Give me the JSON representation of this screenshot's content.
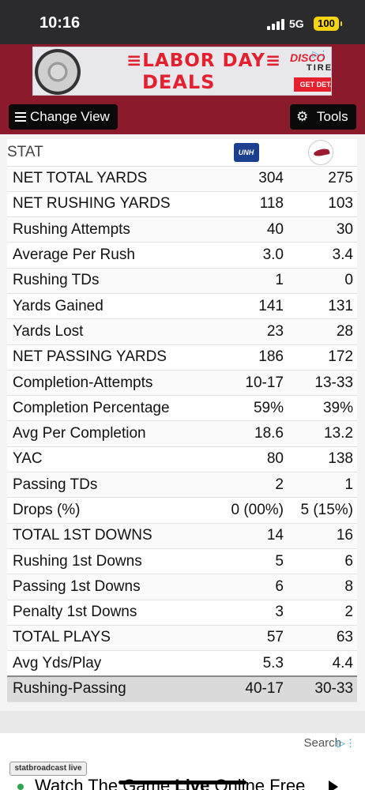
{
  "status_bar": {
    "time": "10:16",
    "network": "5G",
    "battery": "100"
  },
  "ad": {
    "line1": "≡LABOR DAY≡",
    "line2": "DEALS",
    "brand": "DISCO",
    "brand2": "TIRE",
    "cta": "GET DETAILS",
    "colors": {
      "accent": "#e5202e"
    }
  },
  "toolbar": {
    "change_view": "Change View",
    "tools": "Tools"
  },
  "table": {
    "header_label": "STAT",
    "team1_logo_text": "UNH",
    "team2_logo": "bird-icon",
    "rows": [
      {
        "label": "NET TOTAL YARDS",
        "v1": "304",
        "v2": "275"
      },
      {
        "label": "NET RUSHING YARDS",
        "v1": "118",
        "v2": "103"
      },
      {
        "label": "Rushing Attempts",
        "v1": "40",
        "v2": "30"
      },
      {
        "label": "Average Per Rush",
        "v1": "3.0",
        "v2": "3.4"
      },
      {
        "label": "Rushing TDs",
        "v1": "1",
        "v2": "0"
      },
      {
        "label": "Yards Gained",
        "v1": "141",
        "v2": "131"
      },
      {
        "label": "Yards Lost",
        "v1": "23",
        "v2": "28"
      },
      {
        "label": "NET PASSING YARDS",
        "v1": "186",
        "v2": "172"
      },
      {
        "label": "Completion-Attempts",
        "v1": "10-17",
        "v2": "13-33"
      },
      {
        "label": "Completion Percentage",
        "v1": "59%",
        "v2": "39%"
      },
      {
        "label": "Avg Per Completion",
        "v1": "18.6",
        "v2": "13.2"
      },
      {
        "label": "YAC",
        "v1": "80",
        "v2": "138"
      },
      {
        "label": "Passing TDs",
        "v1": "2",
        "v2": "1"
      },
      {
        "label": "Drops (%)",
        "v1": "0 (00%)",
        "v2": "5 (15%)"
      },
      {
        "label": "TOTAL 1ST DOWNS",
        "v1": "14",
        "v2": "16"
      },
      {
        "label": "Rushing 1st Downs",
        "v1": "5",
        "v2": "6"
      },
      {
        "label": "Passing 1st Downs",
        "v1": "6",
        "v2": "8"
      },
      {
        "label": "Penalty 1st Downs",
        "v1": "3",
        "v2": "2"
      },
      {
        "label": "TOTAL PLAYS",
        "v1": "57",
        "v2": "63"
      },
      {
        "label": "Avg Yds/Play",
        "v1": "5.3",
        "v2": "4.4"
      }
    ],
    "total_row": {
      "label": "Rushing-Passing",
      "v1": "40-17",
      "v2": "30-33"
    }
  },
  "footer_ad": {
    "search": "Search",
    "logo": "statbroadcast live",
    "text_pre": "Watch The Game ",
    "text_bold": "Live",
    "text_post": " Online Free"
  },
  "colors": {
    "header_band": "#8b1a2c",
    "button_bg": "#0a0a0a"
  }
}
